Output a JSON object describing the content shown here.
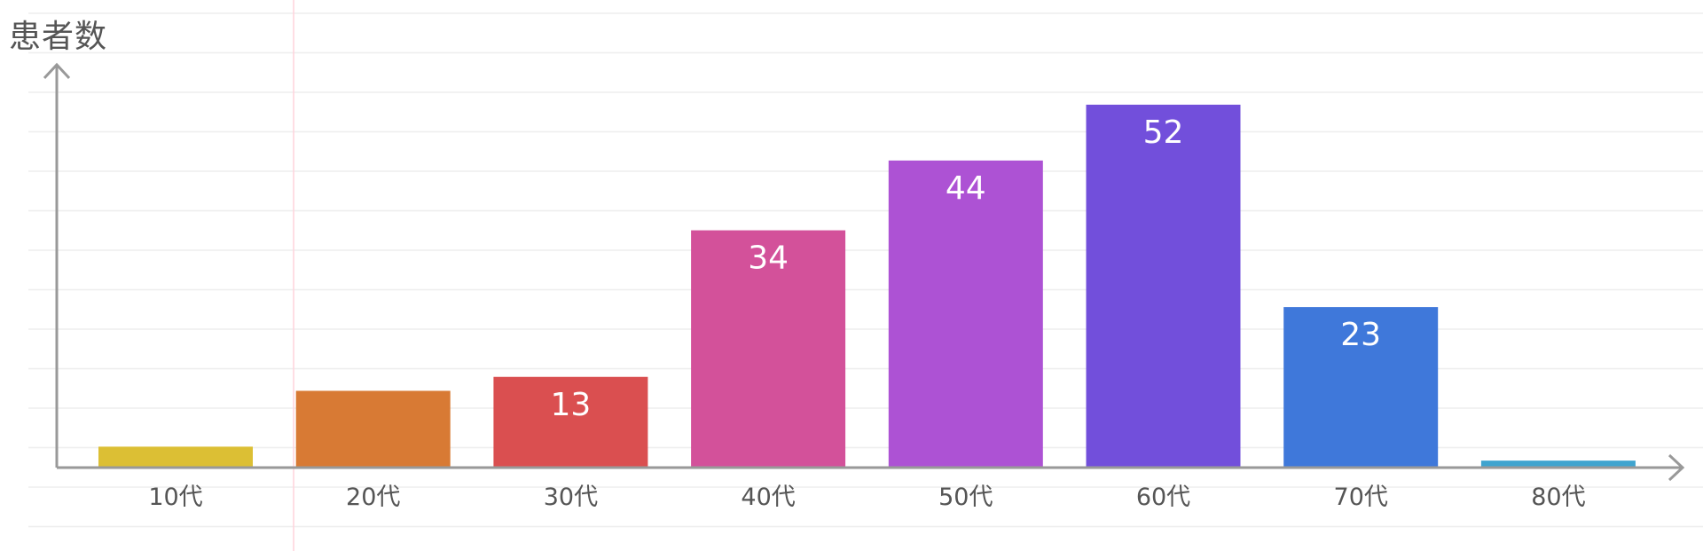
{
  "chart_data": {
    "type": "bar",
    "ylabel": "患者数",
    "xlabel": "",
    "categories": [
      "10代",
      "20代",
      "30代",
      "40代",
      "50代",
      "60代",
      "70代",
      "80代"
    ],
    "values": [
      3,
      11,
      13,
      34,
      44,
      52,
      23,
      1
    ],
    "data_labels": [
      "",
      "",
      "13",
      "34",
      "44",
      "52",
      "23",
      ""
    ],
    "ylim": [
      0,
      57
    ],
    "grid": true,
    "bar_colors": [
      "#dcbf34",
      "#d87a34",
      "#da4f50",
      "#d3519a",
      "#ad52d4",
      "#724fdb",
      "#3f78da",
      "#3fa4cf"
    ],
    "axis_color": "#999999",
    "grid_color": "#eeeeee"
  }
}
